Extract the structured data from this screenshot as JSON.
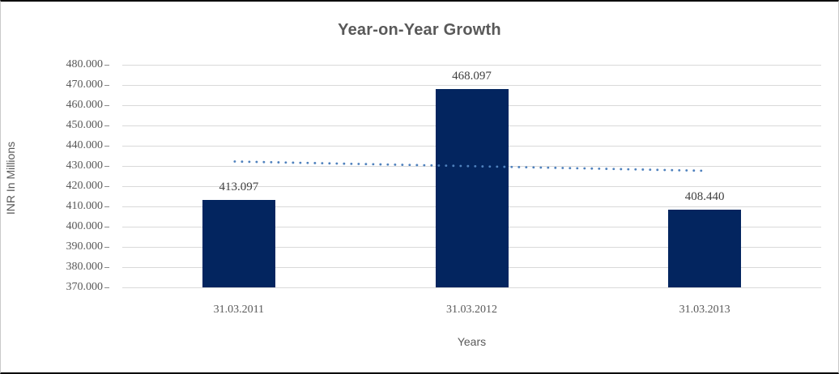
{
  "chart": {
    "title": "Year-on-Year Growth",
    "y_axis_title": "INR In Millions",
    "x_axis_title": "Years"
  },
  "colors": {
    "bar": "#03255f",
    "trendline": "#4f81bd",
    "gridline": "#d9d9d9",
    "tickmark": "#8c8c8c",
    "axis_text": "#595959",
    "data_label_text": "#404040",
    "title_text": "#595959"
  },
  "chart_data": {
    "type": "bar",
    "title": "Year-on-Year Growth",
    "xlabel": "Years",
    "ylabel": "INR In Millions",
    "categories": [
      "31.03.2011",
      "31.03.2012",
      "31.03.2013"
    ],
    "values": [
      413.097,
      468.097,
      408.44
    ],
    "data_labels": [
      "413.097",
      "468.097",
      "408.440"
    ],
    "ylim": [
      370,
      480
    ],
    "ytick_step": 10,
    "ytick_labels": [
      "480.000",
      "470.000",
      "460.000",
      "450.000",
      "440.000",
      "430.000",
      "420.000",
      "410.000",
      "400.000",
      "390.000",
      "380.000",
      "370.000"
    ],
    "grid": true,
    "legend": false,
    "trendline": {
      "style": "dotted",
      "start_value": 432.2,
      "end_value": 427.6
    }
  }
}
